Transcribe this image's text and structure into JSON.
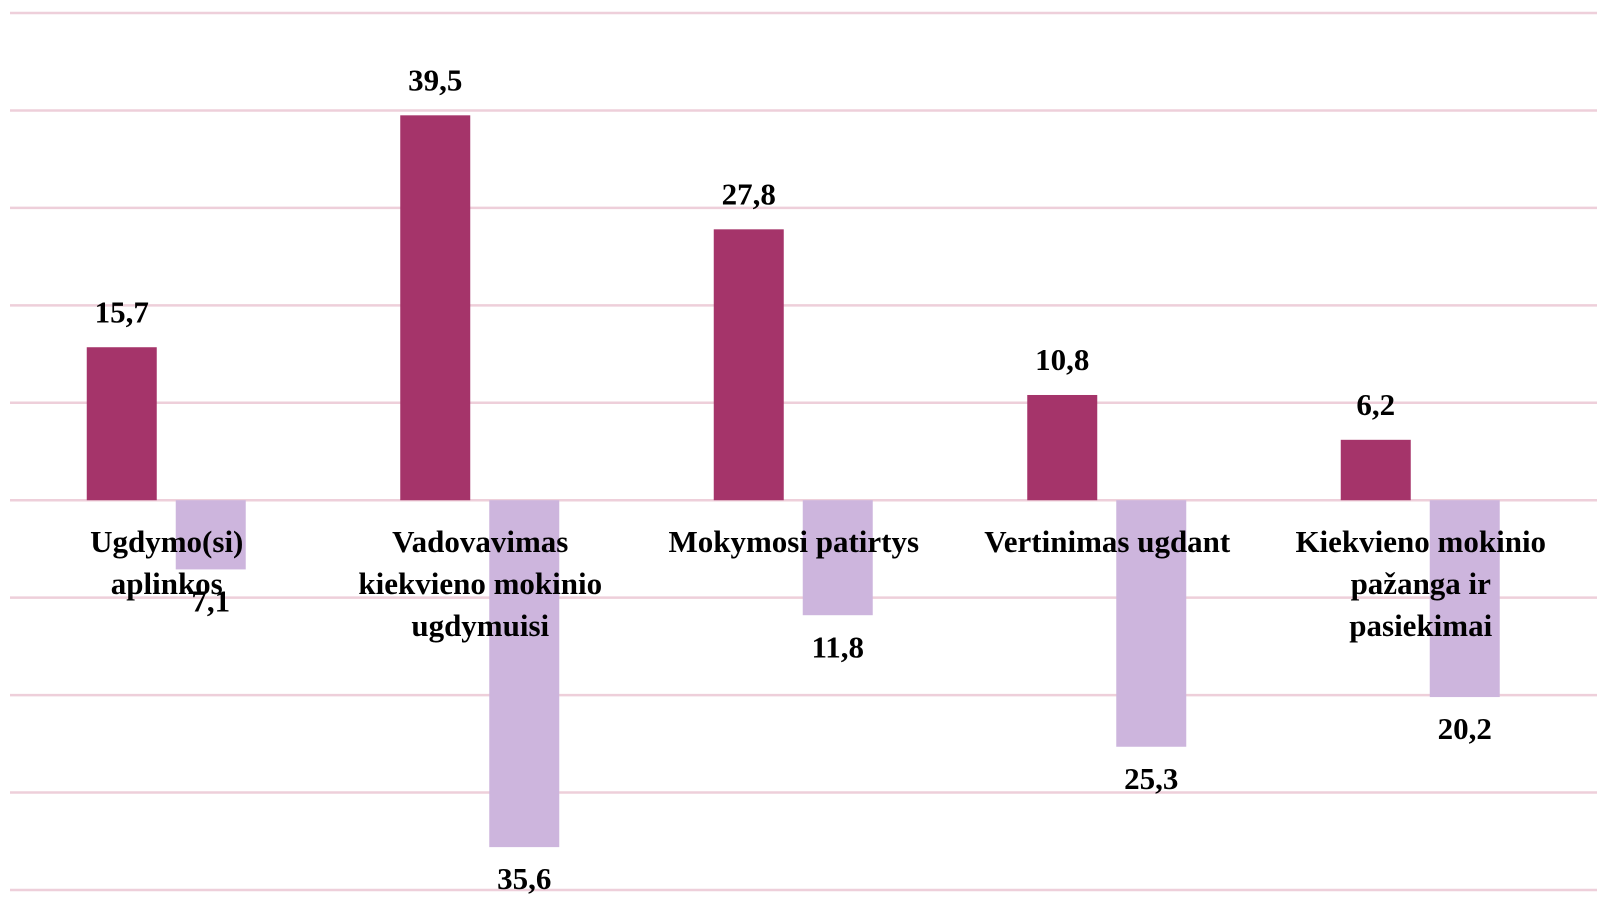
{
  "chart_data": {
    "type": "bar",
    "categories": [
      "Ugdymo(si) aplinkos",
      "Vadovavimas kiekvieno mokinio ugdymuisi",
      "Mokymosi patirtys",
      "Vertinimas ugdant",
      "Kiekvieno mokinio pažanga ir pasiekimai"
    ],
    "series": [
      {
        "color": "#a5346a",
        "values": [
          15.7,
          39.5,
          27.8,
          10.8,
          6.2
        ],
        "value_labels": [
          "15,7",
          "39,5",
          "27,8",
          "10,8",
          "6,2"
        ]
      },
      {
        "color": "#cdb5dd",
        "values": [
          -7.1,
          -35.6,
          -11.8,
          -25.3,
          -20.2
        ],
        "value_labels": [
          "7,1",
          "35,6",
          "11,8",
          "25,3",
          "20,2"
        ]
      }
    ],
    "ylim": [
      -40,
      50
    ],
    "yticks": [
      -40,
      -30,
      -20,
      -10,
      0,
      10,
      20,
      30,
      40,
      50
    ],
    "grid": true
  }
}
